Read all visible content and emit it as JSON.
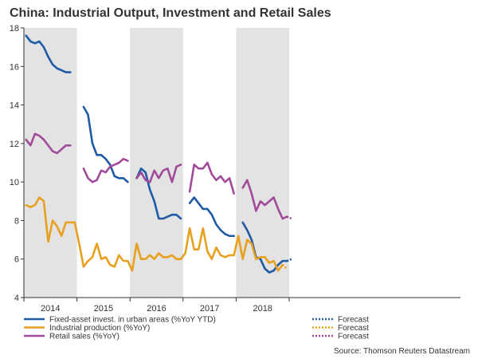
{
  "chart_data": {
    "type": "line",
    "title": "China: Industrial Output, Investment and Retail Sales",
    "source": "Source: Thomson Reuters Datastream",
    "ylim": [
      4,
      18
    ],
    "yticks": [
      4,
      6,
      8,
      10,
      12,
      14,
      16,
      18
    ],
    "years": [
      "2014",
      "2015",
      "2016",
      "2017",
      "2018"
    ],
    "shaded_years": [
      "2014",
      "2016",
      "2018"
    ],
    "grid": false,
    "x_unit": "month index starting Jan 2014 (0 = Jan 2014)",
    "colors": {
      "fixed_asset": "#1f5aa6",
      "industrial": "#e8a01f",
      "retail": "#a24a9a",
      "shade": "#e3e3e3",
      "axis": "#333333"
    },
    "series": [
      {
        "name": "Fixed-asset invest. in urban areas (%YoY YTD)",
        "key": "fixed_asset",
        "color_key": "fixed_asset",
        "segments": [
          {
            "x": [
              0,
              1,
              2,
              3,
              4,
              5,
              6,
              7,
              8,
              9,
              10
            ],
            "y": [
              17.6,
              17.3,
              17.2,
              17.3,
              17.0,
              16.5,
              16.1,
              15.9,
              15.8,
              15.7,
              15.7
            ]
          },
          {
            "x": [
              13,
              14,
              15,
              16,
              17,
              18,
              19,
              20,
              21,
              22,
              23
            ],
            "y": [
              13.9,
              13.5,
              12.0,
              11.4,
              11.4,
              11.2,
              10.9,
              10.3,
              10.2,
              10.2,
              10.0
            ]
          },
          {
            "x": [
              25,
              26,
              27,
              28,
              29,
              30,
              31,
              32,
              33,
              34,
              35
            ],
            "y": [
              10.2,
              10.7,
              10.5,
              9.6,
              9.0,
              8.1,
              8.1,
              8.2,
              8.3,
              8.3,
              8.1
            ]
          },
          {
            "x": [
              37,
              38,
              39,
              40,
              41,
              42,
              43,
              44,
              45,
              46,
              47
            ],
            "y": [
              8.9,
              9.2,
              8.9,
              8.6,
              8.6,
              8.3,
              7.8,
              7.5,
              7.3,
              7.2,
              7.2
            ]
          },
          {
            "x": [
              49,
              50,
              51,
              52,
              53,
              54,
              55,
              56,
              57,
              58,
              59
            ],
            "y": [
              7.9,
              7.5,
              7.0,
              6.1,
              6.0,
              5.5,
              5.3,
              5.4,
              5.7,
              5.9,
              5.9
            ]
          }
        ],
        "forecast": {
          "x": [
            59,
            60
          ],
          "y": [
            5.9,
            6.0
          ]
        }
      },
      {
        "name": "Industrial production (%YoY)",
        "key": "industrial",
        "color_key": "industrial",
        "segments": [
          {
            "x": [
              0,
              1,
              2,
              3,
              4,
              5,
              6,
              7,
              8,
              9,
              10,
              11
            ],
            "y": [
              8.8,
              8.7,
              8.8,
              9.2,
              9.0,
              6.9,
              8.0,
              7.7,
              7.2,
              7.9,
              7.9,
              7.9
            ]
          },
          {
            "x": [
              11,
              12,
              13,
              14,
              15,
              16,
              17,
              18,
              19,
              20,
              21,
              22,
              23
            ],
            "y": [
              7.9,
              6.8,
              5.6,
              5.9,
              6.1,
              6.8,
              6.0,
              6.1,
              5.7,
              5.6,
              6.2,
              5.9,
              5.9
            ]
          },
          {
            "x": [
              23,
              24,
              25,
              26,
              27,
              28,
              29,
              30,
              31,
              32,
              33,
              34,
              35
            ],
            "y": [
              5.9,
              5.4,
              6.8,
              6.0,
              6.0,
              6.2,
              6.0,
              6.3,
              6.1,
              6.1,
              6.2,
              6.0,
              6.0
            ]
          },
          {
            "x": [
              35,
              36,
              37,
              38,
              39,
              40,
              41,
              42,
              43,
              44,
              45,
              46,
              47
            ],
            "y": [
              6.0,
              6.3,
              7.6,
              6.5,
              6.5,
              7.6,
              6.4,
              6.0,
              6.6,
              6.2,
              6.1,
              6.2,
              6.2
            ]
          },
          {
            "x": [
              47,
              48,
              49,
              50,
              51,
              52,
              53,
              54,
              55,
              56,
              57,
              58
            ],
            "y": [
              6.2,
              7.2,
              6.0,
              7.0,
              6.8,
              6.0,
              6.1,
              6.1,
              5.8,
              5.9,
              5.4,
              5.7
            ]
          }
        ],
        "forecast": {
          "x": [
            58,
            59
          ],
          "y": [
            5.7,
            5.5
          ]
        }
      },
      {
        "name": "Retail sales (%YoY)",
        "key": "retail",
        "color_key": "retail",
        "segments": [
          {
            "x": [
              0,
              1,
              2,
              3,
              4,
              5,
              6,
              7,
              8,
              9,
              10
            ],
            "y": [
              12.2,
              11.9,
              12.5,
              12.4,
              12.2,
              11.9,
              11.6,
              11.5,
              11.7,
              11.9,
              11.9
            ]
          },
          {
            "x": [
              13,
              14,
              15,
              16,
              17,
              18,
              19,
              20,
              21,
              22,
              23
            ],
            "y": [
              10.7,
              10.2,
              10.0,
              10.1,
              10.6,
              10.5,
              10.8,
              10.9,
              11.0,
              11.2,
              11.1
            ]
          },
          {
            "x": [
              25,
              26,
              27,
              28,
              29,
              30,
              31,
              32,
              33,
              34,
              35
            ],
            "y": [
              10.2,
              10.5,
              10.1,
              10.0,
              10.6,
              10.2,
              10.6,
              10.7,
              10.0,
              10.8,
              10.9
            ]
          },
          {
            "x": [
              37,
              38,
              39,
              40,
              41,
              42,
              43,
              44,
              45,
              46,
              47
            ],
            "y": [
              9.5,
              10.9,
              10.7,
              10.7,
              11.0,
              10.4,
              10.1,
              10.3,
              10.0,
              10.2,
              9.4
            ]
          },
          {
            "x": [
              49,
              50,
              51,
              52,
              53,
              54,
              55,
              56,
              57,
              58,
              59
            ],
            "y": [
              9.7,
              10.1,
              9.4,
              8.5,
              9.0,
              8.8,
              9.0,
              9.2,
              8.6,
              8.1,
              8.2
            ]
          }
        ],
        "forecast": {
          "x": [
            59,
            60
          ],
          "y": [
            8.2,
            8.1
          ]
        }
      }
    ],
    "legend": {
      "placement": "bottom",
      "entries": [
        {
          "label": "Fixed-asset invest. in urban areas (%YoY YTD)",
          "color_key": "fixed_asset",
          "forecast_label": "Forecast"
        },
        {
          "label": "Industrial production (%YoY)",
          "color_key": "industrial",
          "forecast_label": "Forecast"
        },
        {
          "label": "Retail sales (%YoY)",
          "color_key": "retail",
          "forecast_label": "Forecast"
        }
      ]
    }
  }
}
